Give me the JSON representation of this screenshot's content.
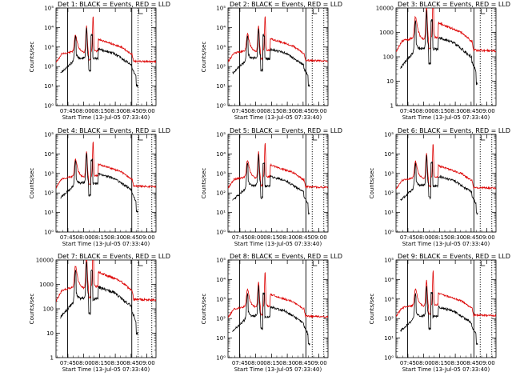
{
  "figure": {
    "layout": "3x3 grid",
    "shared_xlabel": "Start Time (13-Jul-05 07:33:40)",
    "shared_ylabel": "Counts/sec",
    "series_colors": {
      "events": "#000000",
      "lld": "#dd0000"
    },
    "x_tick_labels": [
      "07:45",
      "08:00",
      "08:15",
      "08:30",
      "08:45",
      "09:00"
    ],
    "x_tick_minutes": [
      11.33,
      26.33,
      41.33,
      56.33,
      71.33,
      86.33
    ],
    "xlim_minutes": [
      0,
      95
    ],
    "marker_label": "L"
  },
  "chart_data": [
    {
      "type": "line",
      "title": "Det 1: BLACK = Events, RED = LLD",
      "ylabel": "Counts/sec",
      "xlabel": "Start Time (13-Jul-05 07:33:40)",
      "ytick_style": "exp",
      "ylim": [
        1,
        100000
      ],
      "yticks": [
        1,
        10,
        100,
        1000,
        10000,
        100000
      ],
      "ytick_labels": [
        "10⁰",
        "10¹",
        "10²",
        "10³",
        "10⁴",
        "10⁵"
      ],
      "vlines_solid": [
        11,
        72
      ],
      "vlines_dotted": [
        78,
        91
      ],
      "lld_scale": 1.0,
      "ev_scale": 1.0
    },
    {
      "type": "line",
      "title": "Det 2: BLACK = Events, RED = LLD",
      "ylabel": "Counts/sec",
      "xlabel": "Start Time (13-Jul-05 07:33:40)",
      "ytick_style": "exp",
      "ylim": [
        1,
        100000
      ],
      "yticks": [
        1,
        10,
        100,
        1000,
        10000,
        100000
      ],
      "ytick_labels": [
        "10⁰",
        "10¹",
        "10²",
        "10³",
        "10⁴",
        "10⁵"
      ],
      "vlines_solid": [
        11,
        74
      ],
      "vlines_dotted": [
        80,
        91
      ],
      "lld_scale": 1.1,
      "ev_scale": 1.0
    },
    {
      "type": "line",
      "title": "Det 3: BLACK = Events, RED = LLD",
      "ylabel": "",
      "xlabel": "Start Time (13-Jul-05 07:33:40)",
      "ytick_style": "plain",
      "ylim": [
        1,
        10000
      ],
      "yticks": [
        1,
        10,
        100,
        1000,
        10000
      ],
      "ytick_labels": [
        "1",
        "10",
        "100",
        "1000",
        "10000"
      ],
      "vlines_solid": [
        11,
        74
      ],
      "vlines_dotted": [
        80,
        91
      ],
      "lld_scale": 1.0,
      "ev_scale": 0.8
    },
    {
      "type": "line",
      "title": "Det 4: BLACK = Events, RED = LLD",
      "ylabel": "Counts/sec",
      "xlabel": "Start Time (13-Jul-05 07:33:40)",
      "ytick_style": "exp",
      "ylim": [
        1,
        100000
      ],
      "yticks": [
        1,
        10,
        100,
        1000,
        10000,
        100000
      ],
      "ytick_labels": [
        "10⁰",
        "10¹",
        "10²",
        "10³",
        "10⁴",
        "10⁵"
      ],
      "vlines_solid": [
        11,
        72
      ],
      "vlines_dotted": [
        78,
        91
      ],
      "lld_scale": 1.2,
      "ev_scale": 1.2
    },
    {
      "type": "line",
      "title": "Det 5: BLACK = Events, RED = LLD",
      "ylabel": "Counts/sec",
      "xlabel": "Start Time (13-Jul-05 07:33:40)",
      "ytick_style": "exp",
      "ylim": [
        1,
        100000
      ],
      "yticks": [
        1,
        10,
        100,
        1000,
        10000,
        100000
      ],
      "ytick_labels": [
        "10⁰",
        "10¹",
        "10²",
        "10³",
        "10⁴",
        "10⁵"
      ],
      "vlines_solid": [
        11,
        74
      ],
      "vlines_dotted": [
        80,
        91
      ],
      "lld_scale": 1.1,
      "ev_scale": 0.9
    },
    {
      "type": "line",
      "title": "Det 6: BLACK = Events, RED = LLD",
      "ylabel": "Counts/sec",
      "xlabel": "Start Time (13-Jul-05 07:33:40)",
      "ytick_style": "exp",
      "ylim": [
        1,
        100000
      ],
      "yticks": [
        1,
        10,
        100,
        1000,
        10000,
        100000
      ],
      "ytick_labels": [
        "10⁰",
        "10¹",
        "10²",
        "10³",
        "10⁴",
        "10⁵"
      ],
      "vlines_solid": [
        11,
        74
      ],
      "vlines_dotted": [
        80,
        91
      ],
      "lld_scale": 1.0,
      "ev_scale": 0.9
    },
    {
      "type": "line",
      "title": "Det 7: BLACK = Events, RED = LLD",
      "ylabel": "Counts/sec",
      "xlabel": "Start Time (13-Jul-05 07:33:40)",
      "ytick_style": "plain",
      "ylim": [
        1,
        10000
      ],
      "yticks": [
        1,
        10,
        100,
        1000,
        10000
      ],
      "ytick_labels": [
        "1",
        "10",
        "100",
        "1000",
        "10000"
      ],
      "vlines_solid": [
        11,
        72
      ],
      "vlines_dotted": [
        78,
        91
      ],
      "lld_scale": 1.3,
      "ev_scale": 1.0
    },
    {
      "type": "line",
      "title": "Det 8: BLACK = Events, RED = LLD",
      "ylabel": "Counts/sec",
      "xlabel": "Start Time (13-Jul-05 07:33:40)",
      "ytick_style": "exp",
      "ylim": [
        1,
        100000
      ],
      "yticks": [
        1,
        10,
        100,
        1000,
        10000,
        100000
      ],
      "ytick_labels": [
        "10⁰",
        "10¹",
        "10²",
        "10³",
        "10⁴",
        "10⁵"
      ],
      "vlines_solid": [
        11,
        74
      ],
      "vlines_dotted": [
        80,
        91
      ],
      "lld_scale": 0.7,
      "ev_scale": 0.5
    },
    {
      "type": "line",
      "title": "Det 9: BLACK = Events, RED = LLD",
      "ylabel": "Counts/sec",
      "xlabel": "Start Time (13-Jul-05 07:33:40)",
      "ytick_style": "exp",
      "ylim": [
        1,
        100000
      ],
      "yticks": [
        1,
        10,
        100,
        1000,
        10000,
        100000
      ],
      "ytick_labels": [
        "10⁰",
        "10¹",
        "10²",
        "10³",
        "10⁴",
        "10⁵"
      ],
      "vlines_solid": [
        11,
        74
      ],
      "vlines_dotted": [
        80,
        91
      ],
      "lld_scale": 0.8,
      "ev_scale": 0.5
    }
  ]
}
